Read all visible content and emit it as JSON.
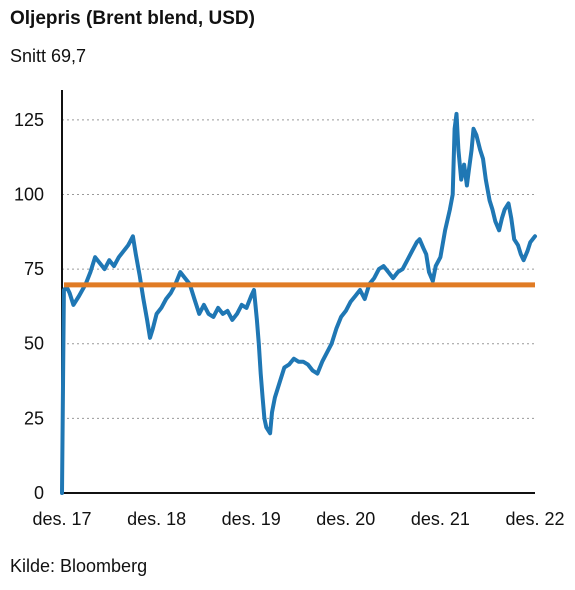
{
  "chart_data": {
    "type": "line",
    "title": "Oljepris (Brent blend, USD)",
    "subtitle": "Snitt 69,7",
    "source": "Kilde: Bloomberg",
    "xlabel": "",
    "ylabel": "",
    "ylim": [
      0,
      135
    ],
    "yticks": [
      0,
      25,
      50,
      75,
      100,
      125
    ],
    "xticks": [
      "des. 17",
      "des. 18",
      "des. 19",
      "des. 20",
      "des. 21",
      "des. 22"
    ],
    "xrange_years": [
      0,
      5
    ],
    "grid": "horizontal dashed",
    "colors": {
      "series": "#1f77b4",
      "average": "#e07b24"
    },
    "average": {
      "value": 69.7
    },
    "series": [
      {
        "values": [
          [
            0.0,
            0
          ],
          [
            0.02,
            68
          ],
          [
            0.05,
            69
          ],
          [
            0.08,
            67
          ],
          [
            0.12,
            63
          ],
          [
            0.18,
            66
          ],
          [
            0.25,
            70
          ],
          [
            0.3,
            74
          ],
          [
            0.35,
            79
          ],
          [
            0.4,
            77
          ],
          [
            0.45,
            75
          ],
          [
            0.5,
            78
          ],
          [
            0.55,
            76
          ],
          [
            0.6,
            79
          ],
          [
            0.65,
            81
          ],
          [
            0.7,
            83
          ],
          [
            0.75,
            86
          ],
          [
            0.78,
            80
          ],
          [
            0.82,
            73
          ],
          [
            0.86,
            65
          ],
          [
            0.9,
            58
          ],
          [
            0.93,
            52
          ],
          [
            0.96,
            55
          ],
          [
            1.0,
            60
          ],
          [
            1.05,
            62
          ],
          [
            1.1,
            65
          ],
          [
            1.15,
            67
          ],
          [
            1.2,
            70
          ],
          [
            1.25,
            74
          ],
          [
            1.3,
            72
          ],
          [
            1.35,
            70
          ],
          [
            1.4,
            65
          ],
          [
            1.45,
            60
          ],
          [
            1.5,
            63
          ],
          [
            1.55,
            60
          ],
          [
            1.6,
            59
          ],
          [
            1.65,
            62
          ],
          [
            1.7,
            60
          ],
          [
            1.75,
            61
          ],
          [
            1.8,
            58
          ],
          [
            1.85,
            60
          ],
          [
            1.9,
            63
          ],
          [
            1.95,
            62
          ],
          [
            2.0,
            66
          ],
          [
            2.03,
            68
          ],
          [
            2.06,
            58
          ],
          [
            2.08,
            50
          ],
          [
            2.1,
            40
          ],
          [
            2.12,
            32
          ],
          [
            2.14,
            25
          ],
          [
            2.16,
            22
          ],
          [
            2.18,
            21
          ],
          [
            2.2,
            20
          ],
          [
            2.22,
            27
          ],
          [
            2.25,
            32
          ],
          [
            2.3,
            37
          ],
          [
            2.35,
            42
          ],
          [
            2.4,
            43
          ],
          [
            2.45,
            45
          ],
          [
            2.5,
            44
          ],
          [
            2.55,
            44
          ],
          [
            2.6,
            43
          ],
          [
            2.65,
            41
          ],
          [
            2.7,
            40
          ],
          [
            2.75,
            44
          ],
          [
            2.8,
            47
          ],
          [
            2.85,
            50
          ],
          [
            2.9,
            55
          ],
          [
            2.95,
            59
          ],
          [
            3.0,
            61
          ],
          [
            3.05,
            64
          ],
          [
            3.1,
            66
          ],
          [
            3.15,
            68
          ],
          [
            3.2,
            65
          ],
          [
            3.25,
            70
          ],
          [
            3.3,
            72
          ],
          [
            3.35,
            75
          ],
          [
            3.4,
            76
          ],
          [
            3.45,
            74
          ],
          [
            3.5,
            72
          ],
          [
            3.55,
            74
          ],
          [
            3.6,
            75
          ],
          [
            3.65,
            78
          ],
          [
            3.7,
            81
          ],
          [
            3.75,
            84
          ],
          [
            3.78,
            85
          ],
          [
            3.82,
            82
          ],
          [
            3.85,
            80
          ],
          [
            3.88,
            74
          ],
          [
            3.92,
            71
          ],
          [
            3.95,
            76
          ],
          [
            4.0,
            79
          ],
          [
            4.05,
            88
          ],
          [
            4.1,
            95
          ],
          [
            4.13,
            100
          ],
          [
            4.15,
            122
          ],
          [
            4.17,
            127
          ],
          [
            4.19,
            115
          ],
          [
            4.22,
            105
          ],
          [
            4.25,
            110
          ],
          [
            4.28,
            103
          ],
          [
            4.3,
            108
          ],
          [
            4.33,
            115
          ],
          [
            4.35,
            122
          ],
          [
            4.38,
            120
          ],
          [
            4.42,
            115
          ],
          [
            4.45,
            112
          ],
          [
            4.48,
            105
          ],
          [
            4.52,
            98
          ],
          [
            4.55,
            95
          ],
          [
            4.58,
            91
          ],
          [
            4.62,
            88
          ],
          [
            4.65,
            92
          ],
          [
            4.68,
            95
          ],
          [
            4.72,
            97
          ],
          [
            4.75,
            92
          ],
          [
            4.78,
            85
          ],
          [
            4.82,
            83
          ],
          [
            4.85,
            80
          ],
          [
            4.88,
            78
          ],
          [
            4.92,
            81
          ],
          [
            4.95,
            84
          ],
          [
            5.0,
            86
          ]
        ]
      }
    ]
  }
}
